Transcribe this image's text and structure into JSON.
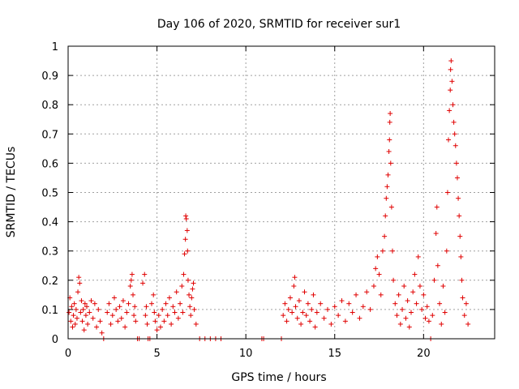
{
  "chart_data": {
    "type": "scatter",
    "title": "Day 106 of 2020, SRMTID for receiver sur1",
    "xlabel": "GPS time / hours",
    "ylabel": "SRMTID / TECUs",
    "xlim": [
      0,
      24
    ],
    "ylim": [
      0,
      1
    ],
    "xticks": [
      0,
      5,
      10,
      15,
      20
    ],
    "xtick_labels": [
      "0",
      "5",
      "10",
      "15",
      "20"
    ],
    "yticks": [
      0,
      0.1,
      0.2,
      0.3,
      0.4,
      0.5,
      0.6,
      0.7,
      0.8,
      0.9,
      1
    ],
    "ytick_labels": [
      "0",
      "0.1",
      "0.2",
      "0.3",
      "0.4",
      "0.5",
      "0.6",
      "0.7",
      "0.8",
      "0.9",
      "1"
    ],
    "grid": true,
    "marker": "+",
    "marker_color": "#e00000",
    "series": [
      {
        "name": "SRMTID",
        "points": [
          [
            0.05,
            0.09
          ],
          [
            0.1,
            0.14
          ],
          [
            0.15,
            0.06
          ],
          [
            0.2,
            0.11
          ],
          [
            0.25,
            0.04
          ],
          [
            0.3,
            0.08
          ],
          [
            0.35,
            0.12
          ],
          [
            0.4,
            0.05
          ],
          [
            0.45,
            0.1
          ],
          [
            0.5,
            0.07
          ],
          [
            0.55,
            0.16
          ],
          [
            0.6,
            0.21
          ],
          [
            0.65,
            0.19
          ],
          [
            0.7,
            0.09
          ],
          [
            0.75,
            0.13
          ],
          [
            0.8,
            0.06
          ],
          [
            0.85,
            0.1
          ],
          [
            0.9,
            0.03
          ],
          [
            0.95,
            0.12
          ],
          [
            1.0,
            0.08
          ],
          [
            1.05,
            0.11
          ],
          [
            1.1,
            0.05
          ],
          [
            1.2,
            0.09
          ],
          [
            1.3,
            0.13
          ],
          [
            1.4,
            0.07
          ],
          [
            1.5,
            0.12
          ],
          [
            1.6,
            0.04
          ],
          [
            1.7,
            0.1
          ],
          [
            1.8,
            0.06
          ],
          [
            1.9,
            0.02
          ],
          [
            2.0,
            0.0
          ],
          [
            2.2,
            0.09
          ],
          [
            2.3,
            0.12
          ],
          [
            2.4,
            0.05
          ],
          [
            2.5,
            0.08
          ],
          [
            2.6,
            0.14
          ],
          [
            2.7,
            0.1
          ],
          [
            2.8,
            0.06
          ],
          [
            2.9,
            0.11
          ],
          [
            3.0,
            0.07
          ],
          [
            3.1,
            0.13
          ],
          [
            3.2,
            0.04
          ],
          [
            3.3,
            0.09
          ],
          [
            3.4,
            0.12
          ],
          [
            3.5,
            0.18
          ],
          [
            3.55,
            0.2
          ],
          [
            3.6,
            0.22
          ],
          [
            3.65,
            0.15
          ],
          [
            3.7,
            0.08
          ],
          [
            3.75,
            0.11
          ],
          [
            3.8,
            0.06
          ],
          [
            3.9,
            0.0
          ],
          [
            4.0,
            0.0
          ],
          [
            4.2,
            0.19
          ],
          [
            4.3,
            0.22
          ],
          [
            4.35,
            0.08
          ],
          [
            4.4,
            0.11
          ],
          [
            4.45,
            0.05
          ],
          [
            4.5,
            0.0
          ],
          [
            4.6,
            0.0
          ],
          [
            4.7,
            0.12
          ],
          [
            4.8,
            0.15
          ],
          [
            4.85,
            0.09
          ],
          [
            4.9,
            0.06
          ],
          [
            5.0,
            0.03
          ],
          [
            5.1,
            0.08
          ],
          [
            5.2,
            0.04
          ],
          [
            5.3,
            0.1
          ],
          [
            5.4,
            0.06
          ],
          [
            5.5,
            0.12
          ],
          [
            5.6,
            0.08
          ],
          [
            5.7,
            0.14
          ],
          [
            5.8,
            0.05
          ],
          [
            5.9,
            0.11
          ],
          [
            6.0,
            0.09
          ],
          [
            6.1,
            0.16
          ],
          [
            6.2,
            0.07
          ],
          [
            6.3,
            0.12
          ],
          [
            6.4,
            0.18
          ],
          [
            6.45,
            0.09
          ],
          [
            6.5,
            0.22
          ],
          [
            6.55,
            0.29
          ],
          [
            6.6,
            0.34
          ],
          [
            6.62,
            0.42
          ],
          [
            6.65,
            0.41
          ],
          [
            6.7,
            0.37
          ],
          [
            6.72,
            0.3
          ],
          [
            6.75,
            0.2
          ],
          [
            6.8,
            0.15
          ],
          [
            6.85,
            0.11
          ],
          [
            6.9,
            0.08
          ],
          [
            6.95,
            0.14
          ],
          [
            7.0,
            0.17
          ],
          [
            7.05,
            0.19
          ],
          [
            7.1,
            0.1
          ],
          [
            7.2,
            0.05
          ],
          [
            7.4,
            0.0
          ],
          [
            7.7,
            0.0
          ],
          [
            8.0,
            0.0
          ],
          [
            8.3,
            0.0
          ],
          [
            8.6,
            0.0
          ],
          [
            10.9,
            0.0
          ],
          [
            11.0,
            0.0
          ],
          [
            12.0,
            0.0
          ],
          [
            12.1,
            0.08
          ],
          [
            12.2,
            0.12
          ],
          [
            12.3,
            0.06
          ],
          [
            12.4,
            0.1
          ],
          [
            12.5,
            0.14
          ],
          [
            12.6,
            0.09
          ],
          [
            12.7,
            0.18
          ],
          [
            12.75,
            0.21
          ],
          [
            12.8,
            0.11
          ],
          [
            12.9,
            0.07
          ],
          [
            13.0,
            0.13
          ],
          [
            13.1,
            0.05
          ],
          [
            13.2,
            0.09
          ],
          [
            13.3,
            0.16
          ],
          [
            13.4,
            0.08
          ],
          [
            13.5,
            0.12
          ],
          [
            13.6,
            0.06
          ],
          [
            13.7,
            0.1
          ],
          [
            13.8,
            0.15
          ],
          [
            13.9,
            0.04
          ],
          [
            14.0,
            0.09
          ],
          [
            14.2,
            0.12
          ],
          [
            14.4,
            0.07
          ],
          [
            14.6,
            0.1
          ],
          [
            14.8,
            0.05
          ],
          [
            15.0,
            0.11
          ],
          [
            15.2,
            0.08
          ],
          [
            15.4,
            0.13
          ],
          [
            15.6,
            0.06
          ],
          [
            15.8,
            0.12
          ],
          [
            16.0,
            0.09
          ],
          [
            16.2,
            0.15
          ],
          [
            16.4,
            0.07
          ],
          [
            16.6,
            0.11
          ],
          [
            16.8,
            0.16
          ],
          [
            17.0,
            0.1
          ],
          [
            17.2,
            0.18
          ],
          [
            17.3,
            0.24
          ],
          [
            17.4,
            0.28
          ],
          [
            17.5,
            0.22
          ],
          [
            17.6,
            0.15
          ],
          [
            17.7,
            0.3
          ],
          [
            17.8,
            0.35
          ],
          [
            17.85,
            0.42
          ],
          [
            17.9,
            0.48
          ],
          [
            17.95,
            0.52
          ],
          [
            18.0,
            0.56
          ],
          [
            18.05,
            0.64
          ],
          [
            18.08,
            0.68
          ],
          [
            18.1,
            0.74
          ],
          [
            18.12,
            0.77
          ],
          [
            18.15,
            0.6
          ],
          [
            18.2,
            0.45
          ],
          [
            18.25,
            0.3
          ],
          [
            18.3,
            0.2
          ],
          [
            18.4,
            0.12
          ],
          [
            18.5,
            0.08
          ],
          [
            18.6,
            0.15
          ],
          [
            18.7,
            0.05
          ],
          [
            18.8,
            0.1
          ],
          [
            18.9,
            0.18
          ],
          [
            19.0,
            0.07
          ],
          [
            19.1,
            0.13
          ],
          [
            19.2,
            0.04
          ],
          [
            19.3,
            0.09
          ],
          [
            19.4,
            0.16
          ],
          [
            19.5,
            0.22
          ],
          [
            19.6,
            0.12
          ],
          [
            19.7,
            0.28
          ],
          [
            19.8,
            0.18
          ],
          [
            19.9,
            0.1
          ],
          [
            20.0,
            0.15
          ],
          [
            20.1,
            0.07
          ],
          [
            20.2,
            0.11
          ],
          [
            20.3,
            0.06
          ],
          [
            20.4,
            0.0
          ],
          [
            20.5,
            0.08
          ],
          [
            20.6,
            0.2
          ],
          [
            20.7,
            0.36
          ],
          [
            20.75,
            0.45
          ],
          [
            20.8,
            0.25
          ],
          [
            20.9,
            0.12
          ],
          [
            21.0,
            0.05
          ],
          [
            21.1,
            0.18
          ],
          [
            21.2,
            0.09
          ],
          [
            21.3,
            0.3
          ],
          [
            21.35,
            0.5
          ],
          [
            21.4,
            0.68
          ],
          [
            21.45,
            0.78
          ],
          [
            21.5,
            0.85
          ],
          [
            21.52,
            0.92
          ],
          [
            21.55,
            0.95
          ],
          [
            21.6,
            0.88
          ],
          [
            21.65,
            0.8
          ],
          [
            21.7,
            0.74
          ],
          [
            21.75,
            0.7
          ],
          [
            21.8,
            0.66
          ],
          [
            21.85,
            0.6
          ],
          [
            21.9,
            0.55
          ],
          [
            21.95,
            0.48
          ],
          [
            22.0,
            0.42
          ],
          [
            22.05,
            0.35
          ],
          [
            22.1,
            0.28
          ],
          [
            22.15,
            0.2
          ],
          [
            22.2,
            0.14
          ],
          [
            22.3,
            0.08
          ],
          [
            22.4,
            0.12
          ],
          [
            22.5,
            0.05
          ]
        ]
      }
    ]
  }
}
